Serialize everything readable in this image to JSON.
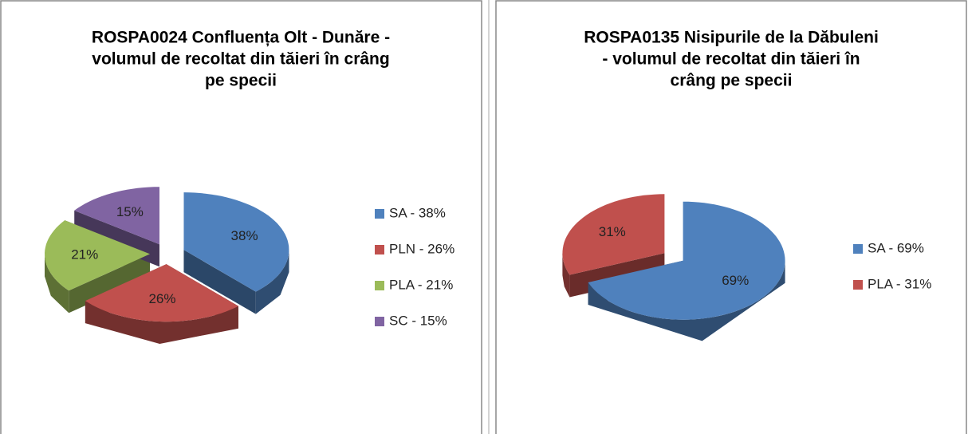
{
  "chart_data": [
    {
      "type": "pie3d",
      "title": [
        "ROSPA0024 Confluența Olt - Dunăre -",
        "volumul de recoltat din tăieri în crâng",
        "pe specii"
      ],
      "categories": [
        "SA - 38%",
        "PLN - 26%",
        "PLA - 21%",
        "SC - 15%"
      ],
      "values": [
        38,
        26,
        21,
        15
      ],
      "value_labels": [
        "38%",
        "26%",
        "21%",
        "15%"
      ],
      "colors": [
        "#4f81bd",
        "#c0504d",
        "#9bbb59",
        "#8064a2"
      ],
      "legend": "right"
    },
    {
      "type": "pie3d",
      "title": [
        "ROSPA0135 Nisipurile de la Dăbuleni",
        "- volumul de recoltat din tăieri în",
        "crâng pe specii"
      ],
      "categories": [
        "SA - 69%",
        "PLA - 31%"
      ],
      "values": [
        69,
        31
      ],
      "value_labels": [
        "69%",
        "31%"
      ],
      "colors": [
        "#4f81bd",
        "#c0504d"
      ],
      "legend": "right"
    }
  ]
}
